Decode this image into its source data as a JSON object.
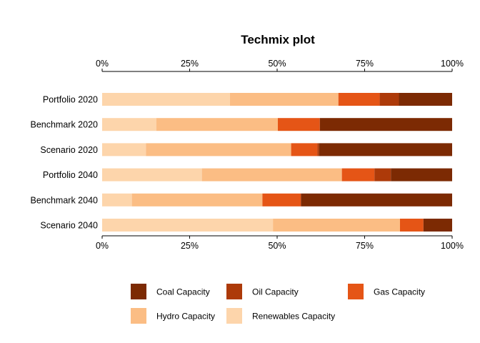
{
  "chart_data": {
    "type": "bar",
    "orientation": "horizontal",
    "stacked": true,
    "title": "Techmix plot",
    "xlabel": "",
    "ylabel": "",
    "xlim": [
      0,
      1
    ],
    "x_ticks": [
      "0%",
      "25%",
      "50%",
      "75%",
      "100%"
    ],
    "x_axis_position": "top-and-bottom",
    "grid": false,
    "legend_position": "bottom",
    "categories": [
      "Portfolio 2020",
      "Benchmark 2020",
      "Scenario 2020",
      "Portfolio 2040",
      "Benchmark 2040",
      "Scenario 2040"
    ],
    "series": [
      {
        "name": "Renewables Capacity",
        "color": "#fdd5ab",
        "values": [
          0.365,
          0.155,
          0.125,
          0.285,
          0.085,
          0.488
        ]
      },
      {
        "name": "Hydro Capacity",
        "color": "#fbbd84",
        "values": [
          0.31,
          0.347,
          0.415,
          0.4,
          0.373,
          0.363
        ]
      },
      {
        "name": "Gas Capacity",
        "color": "#e55516",
        "values": [
          0.118,
          0.12,
          0.075,
          0.093,
          0.11,
          0.067
        ]
      },
      {
        "name": "Oil Capacity",
        "color": "#ad3a09",
        "values": [
          0.055,
          0,
          0.005,
          0.047,
          0,
          0
        ]
      },
      {
        "name": "Coal Capacity",
        "color": "#7c2a03",
        "values": [
          0.152,
          0.378,
          0.38,
          0.175,
          0.432,
          0.082
        ]
      }
    ],
    "legend_order": [
      "Coal Capacity",
      "Oil Capacity",
      "Gas Capacity",
      "Hydro Capacity",
      "Renewables Capacity"
    ]
  }
}
